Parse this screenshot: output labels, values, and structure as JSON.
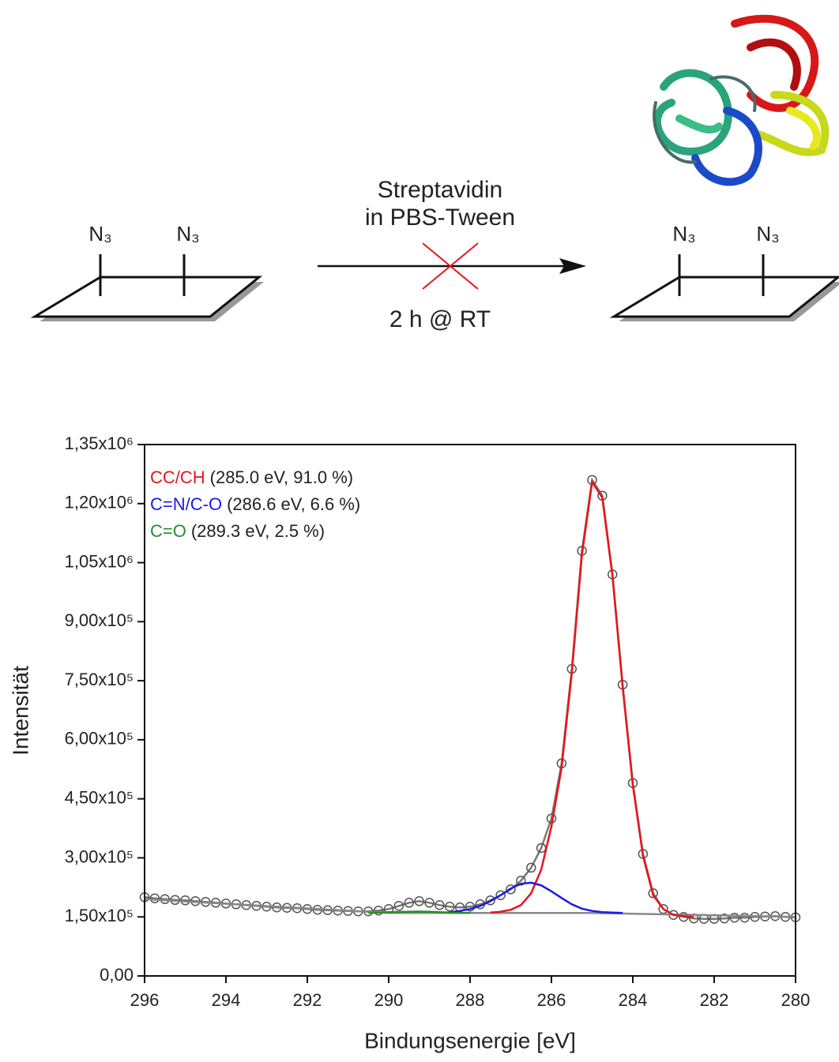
{
  "scheme": {
    "substituent_labels": [
      "N₃",
      "N₃",
      "N₃",
      "N₃"
    ],
    "reagent": [
      "Streptavidin",
      "in PBS-Tween"
    ],
    "condition": "2 h @ RT"
  },
  "chart_data": {
    "type": "line",
    "xlabel": "Bindungsenergie [eV]",
    "ylabel": "Intensität",
    "xlim": [
      296,
      280
    ],
    "ylim": [
      0,
      1350000
    ],
    "xticks": [
      296,
      294,
      292,
      290,
      288,
      286,
      284,
      282,
      280
    ],
    "yticks": [
      {
        "value": 0,
        "label": "0,00"
      },
      {
        "value": 150000,
        "label": "1,50x10⁵"
      },
      {
        "value": 300000,
        "label": "3,00x10⁵"
      },
      {
        "value": 450000,
        "label": "4,50x10⁵"
      },
      {
        "value": 600000,
        "label": "6,00x10⁵"
      },
      {
        "value": 750000,
        "label": "7,50x10⁵"
      },
      {
        "value": 900000,
        "label": "9,00x10⁵"
      },
      {
        "value": 1050000,
        "label": "1,05x10⁶"
      },
      {
        "value": 1200000,
        "label": "1,20x10⁶"
      },
      {
        "value": 1350000,
        "label": "1,35x10⁶"
      }
    ],
    "x": [
      296,
      295.75,
      295.5,
      295.25,
      295,
      294.75,
      294.5,
      294.25,
      294,
      293.75,
      293.5,
      293.25,
      293,
      292.75,
      292.5,
      292.25,
      292,
      291.75,
      291.5,
      291.25,
      291,
      290.75,
      290.5,
      290.25,
      290,
      289.75,
      289.5,
      289.25,
      289,
      288.75,
      288.5,
      288.25,
      288,
      287.75,
      287.5,
      287.25,
      287,
      286.75,
      286.5,
      286.25,
      286,
      285.75,
      285.5,
      285.25,
      285,
      284.75,
      284.5,
      284.25,
      284,
      283.75,
      283.5,
      283.25,
      283,
      282.75,
      282.5,
      282.25,
      282,
      281.75,
      281.5,
      281.25,
      281,
      280.75,
      280.5,
      280.25,
      280
    ],
    "series": [
      {
        "color": "#777777",
        "values": [
          200000,
          197000,
          195000,
          193000,
          192000,
          190000,
          188000,
          186000,
          184000,
          182000,
          180000,
          178000,
          176000,
          174000,
          173000,
          172000,
          170000,
          168000,
          167000,
          166000,
          165000,
          164000,
          164000,
          166000,
          170000,
          178000,
          186000,
          190000,
          186000,
          180000,
          176000,
          174000,
          176000,
          182000,
          192000,
          205000,
          220000,
          242000,
          275000,
          325000,
          400000,
          540000,
          780000,
          1080000,
          1260000,
          1220000,
          1020000,
          740000,
          490000,
          310000,
          210000,
          170000,
          155000,
          150000,
          146000,
          145000,
          145000,
          146000,
          148000,
          148000,
          150000,
          151000,
          152000,
          150000,
          149000
        ]
      },
      {
        "color": "#888888",
        "x": [
          296,
          290,
          285,
          280
        ],
        "values": [
          195000,
          160000,
          160000,
          150000
        ]
      },
      {
        "name": "CC/CH",
        "detail": "(285.0 eV, 91.0 %)",
        "color": "#e8141c",
        "x": [
          287.5,
          287.25,
          287,
          286.75,
          286.5,
          286.25,
          286,
          285.75,
          285.5,
          285.25,
          285,
          284.75,
          284.5,
          284.25,
          284,
          283.75,
          283.5,
          283.25,
          283,
          282.75,
          282.5
        ],
        "values": [
          161000,
          163000,
          168000,
          180000,
          210000,
          270000,
          380000,
          530000,
          770000,
          1070000,
          1255000,
          1215000,
          1015000,
          735000,
          485000,
          305000,
          205000,
          170000,
          155000,
          152000,
          150000
        ]
      },
      {
        "name": "C=N/C-O",
        "detail": "(286.6 eV, 6.6 %)",
        "color": "#1a1ae6",
        "x": [
          288.5,
          288.25,
          288,
          287.75,
          287.5,
          287.25,
          287,
          286.75,
          286.5,
          286.25,
          286,
          285.75,
          285.5,
          285.25,
          285,
          284.75,
          284.5,
          284.25
        ],
        "values": [
          162000,
          165000,
          170000,
          178000,
          190000,
          205000,
          222000,
          234000,
          237000,
          230000,
          215000,
          198000,
          182000,
          171000,
          165000,
          162000,
          161000,
          160000
        ]
      },
      {
        "name": "C=O",
        "detail": "(289.3 eV, 2.5 %)",
        "color": "#2a8c2a",
        "x": [
          290.5,
          290.25,
          290,
          289.75,
          289.5,
          289.25,
          289,
          288.75,
          288.5,
          288.25,
          288
        ],
        "values": [
          160000,
          161000,
          162000,
          162500,
          163000,
          163500,
          163000,
          162000,
          161000,
          160000,
          160000
        ]
      }
    ]
  }
}
